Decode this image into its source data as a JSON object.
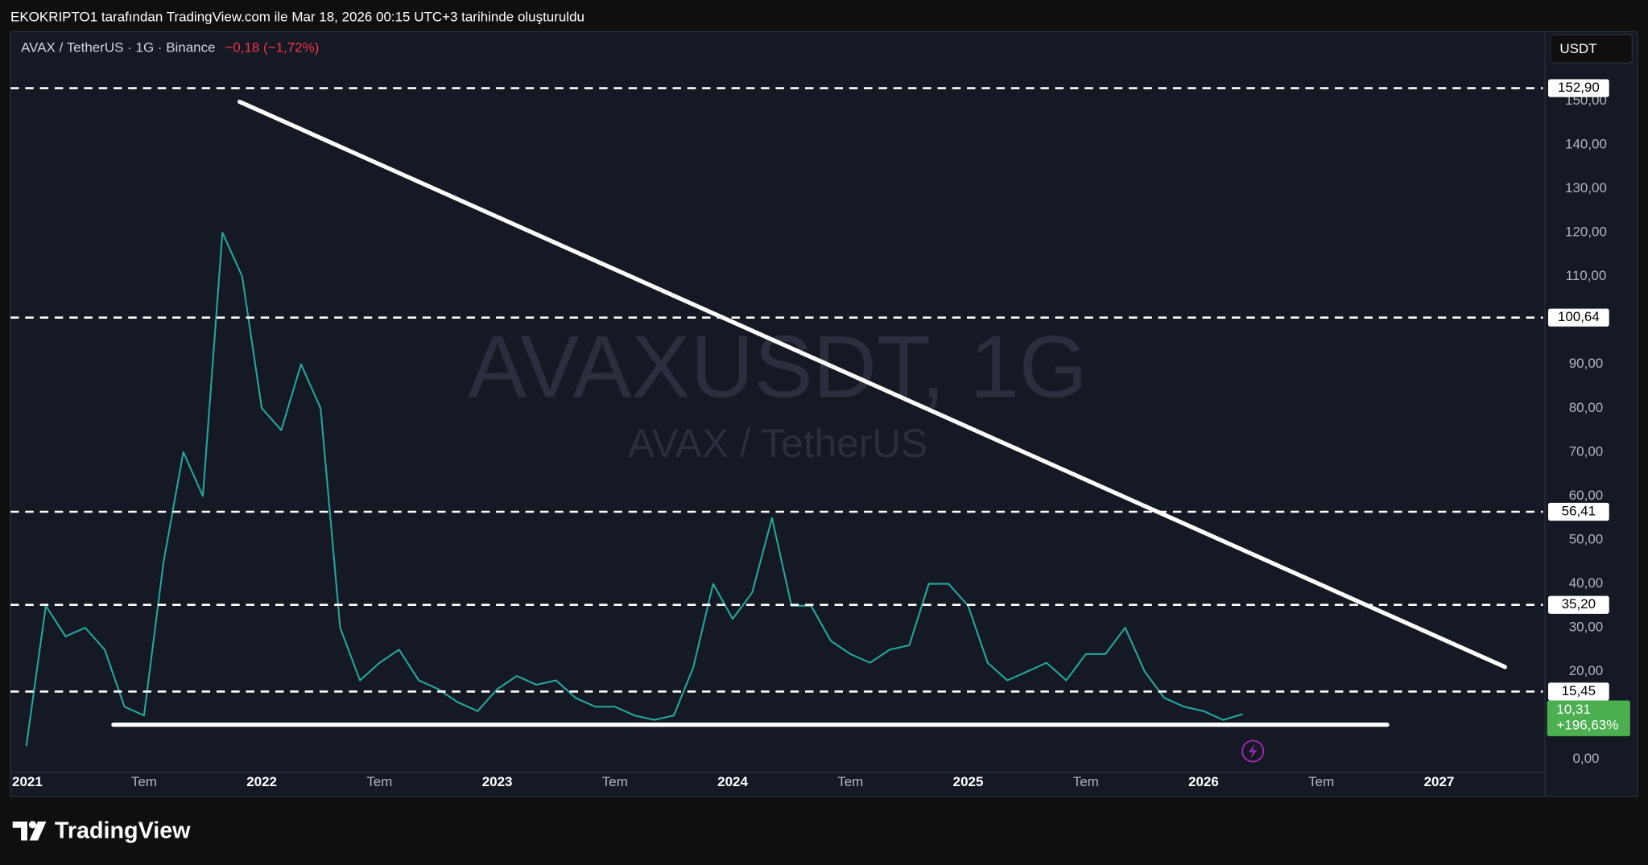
{
  "header": {
    "credit": "EKOKRIPTO1 tarafından TradingView.com ile Mar 18, 2026 00:15 UTC+3 tarihinde oluşturuldu"
  },
  "chart_data": {
    "type": "line",
    "title": "AVAXUSDT, 1G",
    "subtitle": "AVAX / TetherUS",
    "symbol": "AVAX / TetherUS · 1G · Binance",
    "change": "−0,18 (−1,72%)",
    "currency": "USDT",
    "color": "#26a69a",
    "x": [
      2021,
      2021.083,
      2021.167,
      2021.25,
      2021.333,
      2021.417,
      2021.5,
      2021.583,
      2021.667,
      2021.75,
      2021.833,
      2021.917,
      2022,
      2022.083,
      2022.167,
      2022.25,
      2022.333,
      2022.417,
      2022.5,
      2022.583,
      2022.667,
      2022.75,
      2022.833,
      2022.917,
      2023,
      2023.083,
      2023.167,
      2023.25,
      2023.333,
      2023.417,
      2023.5,
      2023.583,
      2023.667,
      2023.75,
      2023.833,
      2023.917,
      2024,
      2024.083,
      2024.167,
      2024.25,
      2024.333,
      2024.417,
      2024.5,
      2024.583,
      2024.667,
      2024.75,
      2024.833,
      2024.917,
      2025,
      2025.083,
      2025.167,
      2025.25,
      2025.333,
      2025.417,
      2025.5,
      2025.583,
      2025.667,
      2025.75,
      2025.833,
      2025.917,
      2026,
      2026.083,
      2026.167
    ],
    "values": [
      3,
      35,
      28,
      30,
      25,
      12,
      10,
      45,
      70,
      60,
      120,
      110,
      80,
      75,
      90,
      80,
      30,
      18,
      22,
      25,
      18,
      16,
      13,
      11,
      16,
      19,
      17,
      18,
      14,
      12,
      12,
      10,
      9,
      10,
      21,
      40,
      32,
      38,
      55,
      35,
      35,
      27,
      24,
      22,
      25,
      26,
      40,
      40,
      35,
      22,
      18,
      20,
      22,
      18,
      24,
      24,
      30,
      20,
      14,
      12,
      11,
      9,
      10.31
    ],
    "xlim": [
      2020.933,
      2027.45
    ],
    "ylim": [
      -2.9,
      165.8
    ],
    "xticks": [
      2021,
      {
        "value": 2021.5,
        "label": "Tem"
      },
      2022,
      {
        "value": 2022.5,
        "label": "Tem"
      },
      2023,
      {
        "value": 2023.5,
        "label": "Tem"
      },
      2024,
      {
        "value": 2024.5,
        "label": "Tem"
      },
      2025,
      {
        "value": 2025.5,
        "label": "Tem"
      },
      2026,
      {
        "value": 2026.5,
        "label": "Tem"
      },
      2027
    ],
    "yticks": [
      {
        "value": 0,
        "label": "0,00"
      },
      {
        "value": 10,
        "label": "10,00"
      },
      {
        "value": 20,
        "label": "20,00"
      },
      {
        "value": 30,
        "label": "30,00"
      },
      {
        "value": 40,
        "label": "40,00"
      },
      {
        "value": 50,
        "label": "50,00"
      },
      {
        "value": 60,
        "label": "60,00"
      },
      {
        "value": 70,
        "label": "70,00"
      },
      {
        "value": 80,
        "label": "80,00"
      },
      {
        "value": 90,
        "label": "90,00"
      },
      {
        "value": 100,
        "label": "100,00"
      },
      {
        "value": 110,
        "label": "110,00"
      },
      {
        "value": 120,
        "label": "120,00"
      },
      {
        "value": 130,
        "label": "130,00"
      },
      {
        "value": 140,
        "label": "140,00"
      },
      {
        "value": 150,
        "label": "150,00"
      }
    ],
    "grid": false,
    "levels": [
      {
        "value": 152.9,
        "label": "152,90"
      },
      {
        "value": 100.64,
        "label": "100,64"
      },
      {
        "value": 56.41,
        "label": "56,41"
      },
      {
        "value": 35.2,
        "label": "35,20"
      },
      {
        "value": 15.45,
        "label": "15,45"
      }
    ],
    "trendlines": [
      {
        "x": [
          2021.906,
          2027.28
        ],
        "y": [
          149.8,
          21.05
        ]
      },
      {
        "x": [
          2021.37,
          2026.78
        ],
        "y": [
          7.9,
          7.9
        ]
      }
    ],
    "last_price": {
      "value": 10.31,
      "label": "10,31"
    },
    "change_label": "+196,63%"
  },
  "footer": {
    "brand": "TradingView"
  }
}
